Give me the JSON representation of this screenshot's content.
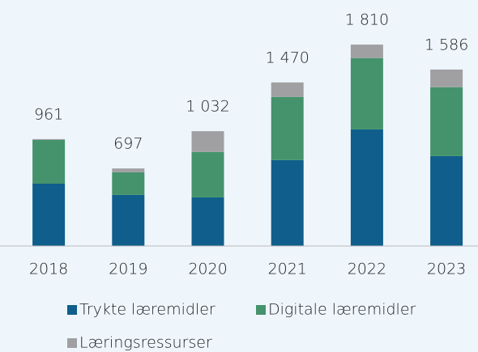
{
  "chart_data": {
    "type": "stacked_bar",
    "categories": [
      "2018",
      "2019",
      "2020",
      "2021",
      "2022",
      "2023"
    ],
    "series": [
      {
        "name": "Trykte læremidler",
        "color": "#0f5e8c",
        "values": [
          560,
          459,
          437,
          772,
          1048,
          808
        ]
      },
      {
        "name": "Digitale læremidler",
        "color": "#44936c",
        "values": [
          393,
          204,
          408,
          568,
          641,
          619
        ]
      },
      {
        "name": "Læringsressurser",
        "color": "#a0a0a2",
        "values": [
          8,
          34,
          187,
          130,
          121,
          159
        ]
      }
    ],
    "totals": [
      961,
      697,
      1032,
      1470,
      1810,
      1586
    ],
    "total_labels": [
      "961",
      "697",
      "1 032",
      "1 470",
      "1 810",
      "1 586"
    ],
    "ylim": [
      0,
      2000
    ]
  }
}
